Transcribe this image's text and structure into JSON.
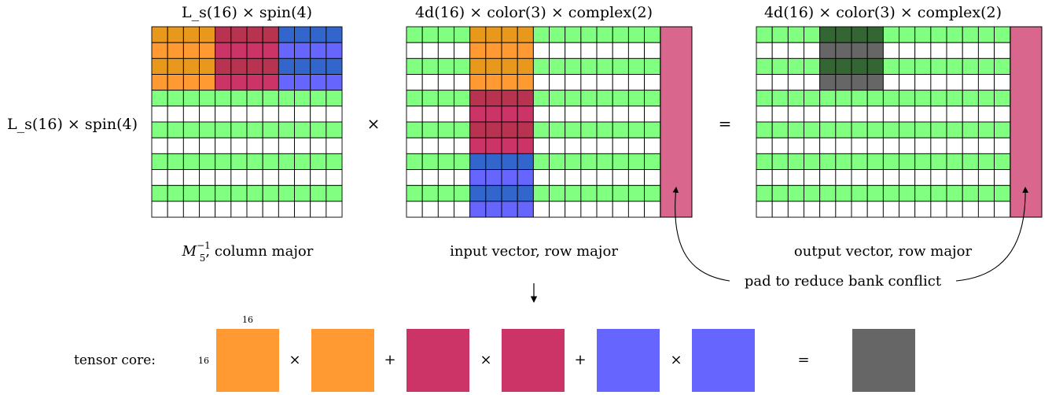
{
  "matrix": {
    "col_label": "L_s(16) × spin(4)",
    "row_label": "L_s(16) × spin(4)",
    "caption_pre": "M",
    "caption_sub": "5",
    "caption_sup": "−1",
    "caption_post": ", column major"
  },
  "input": {
    "col_label": "4d(16) × color(3) × complex(2)",
    "caption": "input vector, row major"
  },
  "output": {
    "col_label": "4d(16) × color(3) × complex(2)",
    "caption": "output vector, row major"
  },
  "ops": {
    "times": "×",
    "equals": "=",
    "plus": "+"
  },
  "down_arrow": "↓",
  "pad_note": "pad to reduce bank conflict",
  "tensor_core": {
    "label": "tensor core:",
    "tile_size": "16",
    "sequence": [
      "orange",
      "×",
      "orange",
      "+",
      "crimson",
      "×",
      "crimson",
      "+",
      "blue",
      "×",
      "blue",
      "=",
      "gray"
    ]
  },
  "colors": {
    "green": "#80ff80",
    "orange": "#ff9a33",
    "orange_dark": "#e8981b",
    "crimson": "#cc3366",
    "crimson_dark": "#b8334f",
    "blue": "#6666ff",
    "blue_dark": "#3366cc",
    "gray": "#666666",
    "gray_dark": "#336633",
    "pad": "#d9668c"
  }
}
